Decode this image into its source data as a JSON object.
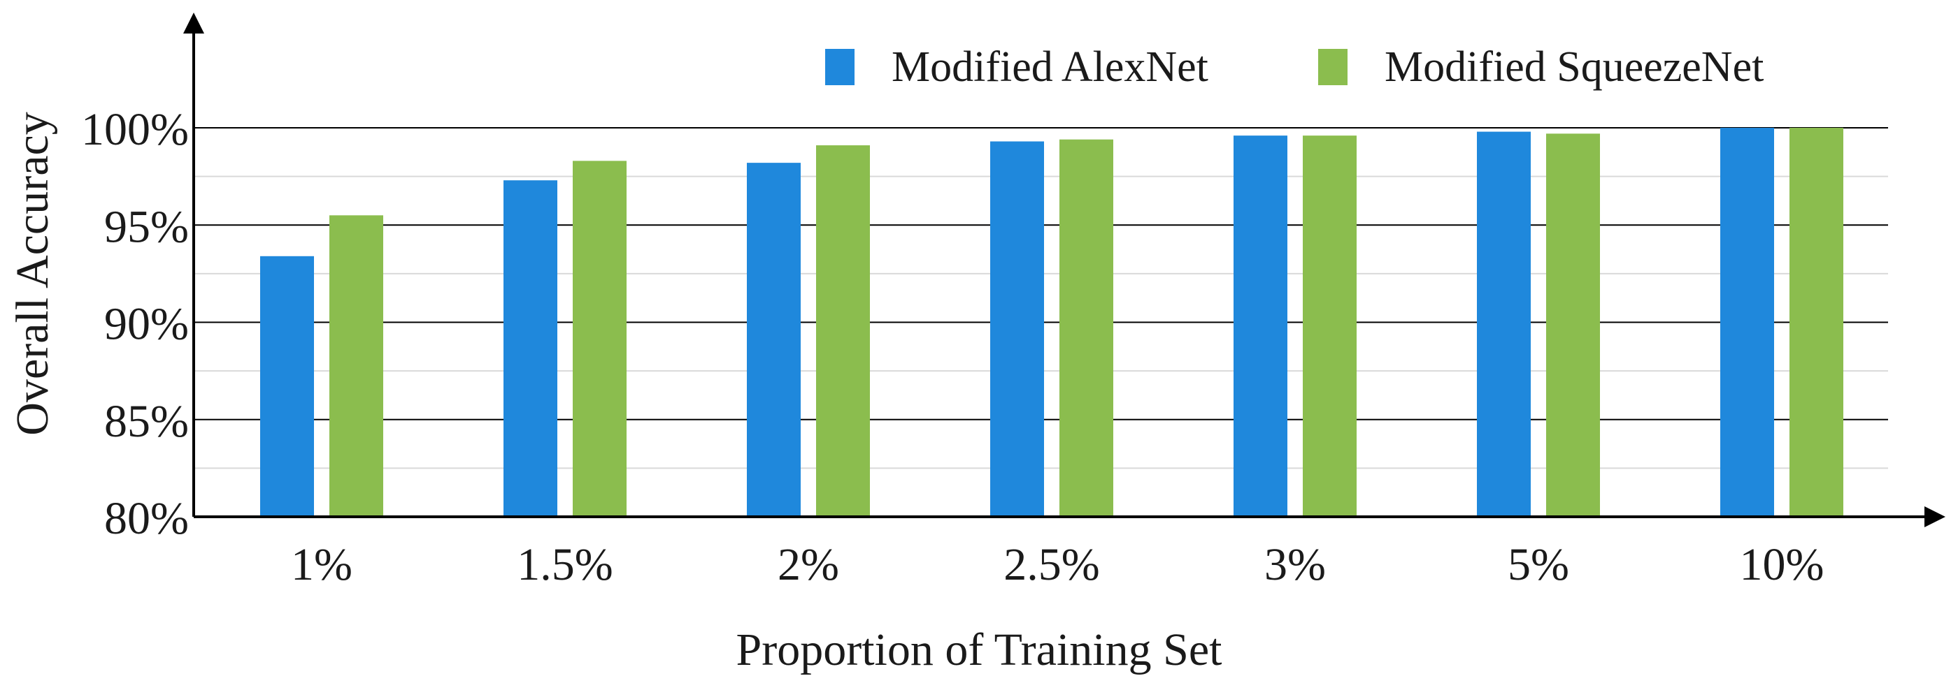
{
  "chart_data": {
    "type": "bar",
    "title": "",
    "xlabel": "Proportion of Training Set",
    "ylabel": "Overall Accuracy",
    "categories": [
      "1%",
      "1.5%",
      "2%",
      "2.5%",
      "3%",
      "5%",
      "10%"
    ],
    "series": [
      {
        "name": "Modified AlexNet",
        "color": "#1f88dc",
        "values": [
          93.4,
          97.3,
          98.2,
          99.3,
          99.6,
          99.8,
          100.0
        ]
      },
      {
        "name": "Modified SqueezeNet",
        "color": "#8bbd4e",
        "values": [
          95.5,
          98.3,
          99.1,
          99.4,
          99.6,
          99.7,
          100.0
        ]
      }
    ],
    "ylim": [
      80,
      100
    ],
    "yticks": [
      "80%",
      "85%",
      "90%",
      "95%",
      "100%"
    ],
    "ytick_values": [
      80,
      85,
      90,
      95,
      100
    ],
    "grid": true,
    "legend_position": "top-right"
  }
}
